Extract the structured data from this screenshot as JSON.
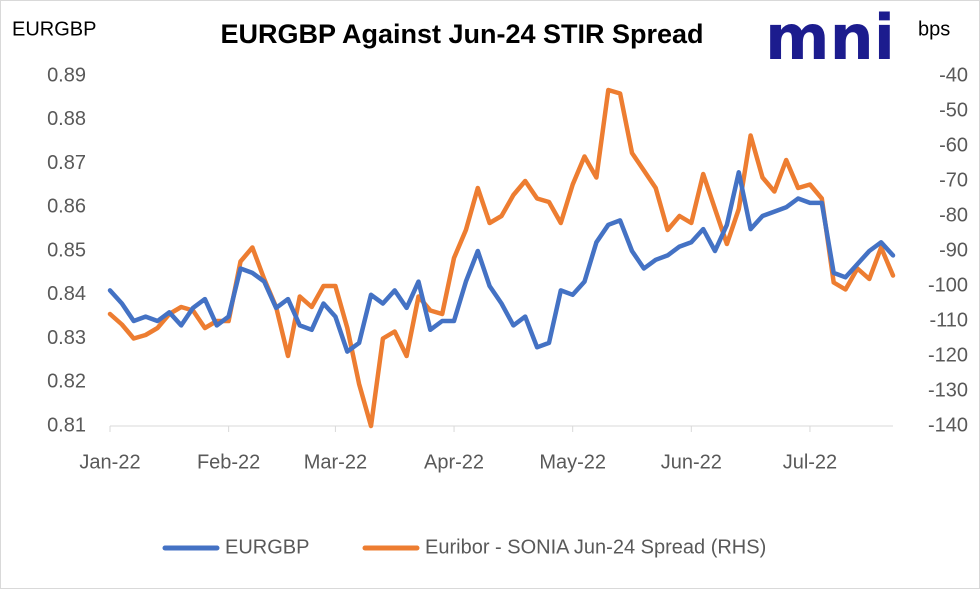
{
  "chart_data": {
    "type": "line",
    "title": "EURGBP Against Jun-24 STIR Spread",
    "logo": "mni",
    "y_label": "EURGBP",
    "y2_label": "bps",
    "categories": [
      "Jan-22",
      null,
      null,
      null,
      null,
      null,
      null,
      null,
      null,
      null,
      "Feb-22",
      null,
      null,
      null,
      null,
      null,
      null,
      null,
      null,
      "Mar-22",
      null,
      null,
      null,
      null,
      null,
      null,
      null,
      null,
      null,
      "Apr-22",
      null,
      null,
      null,
      null,
      null,
      null,
      null,
      null,
      null,
      "May-22",
      null,
      null,
      null,
      null,
      null,
      null,
      null,
      null,
      null,
      "Jun-22",
      null,
      null,
      null,
      null,
      null,
      null,
      null,
      null,
      null,
      "Jul-22",
      null,
      null,
      null,
      null,
      null,
      null,
      null
    ],
    "series": [
      {
        "name": "EURGBP",
        "color": "#4472c4",
        "values": [
          0.841,
          0.838,
          0.834,
          0.835,
          0.834,
          0.836,
          0.833,
          0.837,
          0.839,
          0.833,
          0.835,
          0.846,
          0.845,
          0.843,
          0.837,
          0.839,
          0.833,
          0.832,
          0.838,
          0.835,
          0.827,
          0.829,
          0.84,
          0.838,
          0.841,
          0.837,
          0.843,
          0.832,
          0.834,
          0.834,
          0.843,
          0.85,
          0.842,
          0.838,
          0.833,
          0.835,
          0.828,
          0.829,
          0.841,
          0.84,
          0.843,
          0.852,
          0.856,
          0.857,
          0.85,
          0.846,
          0.848,
          0.849,
          0.851,
          0.852,
          0.855,
          0.85,
          0.856,
          0.868,
          0.855,
          0.858,
          0.859,
          0.86,
          0.862,
          0.861,
          0.861,
          0.845,
          0.844,
          0.847,
          0.85,
          0.852,
          0.849
        ]
      },
      {
        "name": "Euribor - SONIA Jun-24 Spread (RHS)",
        "color": "#ed7d31",
        "axis": "y2",
        "values": [
          -108,
          -111,
          -115,
          -114,
          -112,
          -108,
          -106,
          -107,
          -112,
          -110,
          -110,
          -93,
          -89,
          -98,
          -106,
          -120,
          -103,
          -106,
          -100,
          -100,
          -112,
          -128,
          -140,
          -115,
          -113,
          -120,
          -103,
          -107,
          -108,
          -92,
          -84,
          -72,
          -82,
          -80,
          -74,
          -70,
          -75,
          -76,
          -82,
          -71,
          -63,
          -69,
          -44,
          -45,
          -62,
          -67,
          -72,
          -84,
          -80,
          -82,
          -68,
          -78,
          -88,
          -78,
          -57,
          -69,
          -73,
          -64,
          -72,
          -71,
          -75,
          -99,
          -101,
          -95,
          -98,
          -89,
          -97
        ]
      }
    ],
    "ylim": [
      0.81,
      0.89
    ],
    "yticks": [
      0.81,
      0.82,
      0.83,
      0.84,
      0.85,
      0.86,
      0.87,
      0.88,
      0.89
    ],
    "y2lim": [
      -140,
      -40
    ],
    "y2ticks": [
      -140,
      -130,
      -120,
      -110,
      -100,
      -90,
      -80,
      -70,
      -60,
      -50,
      -40
    ],
    "grid": false,
    "legend": "bottom"
  }
}
